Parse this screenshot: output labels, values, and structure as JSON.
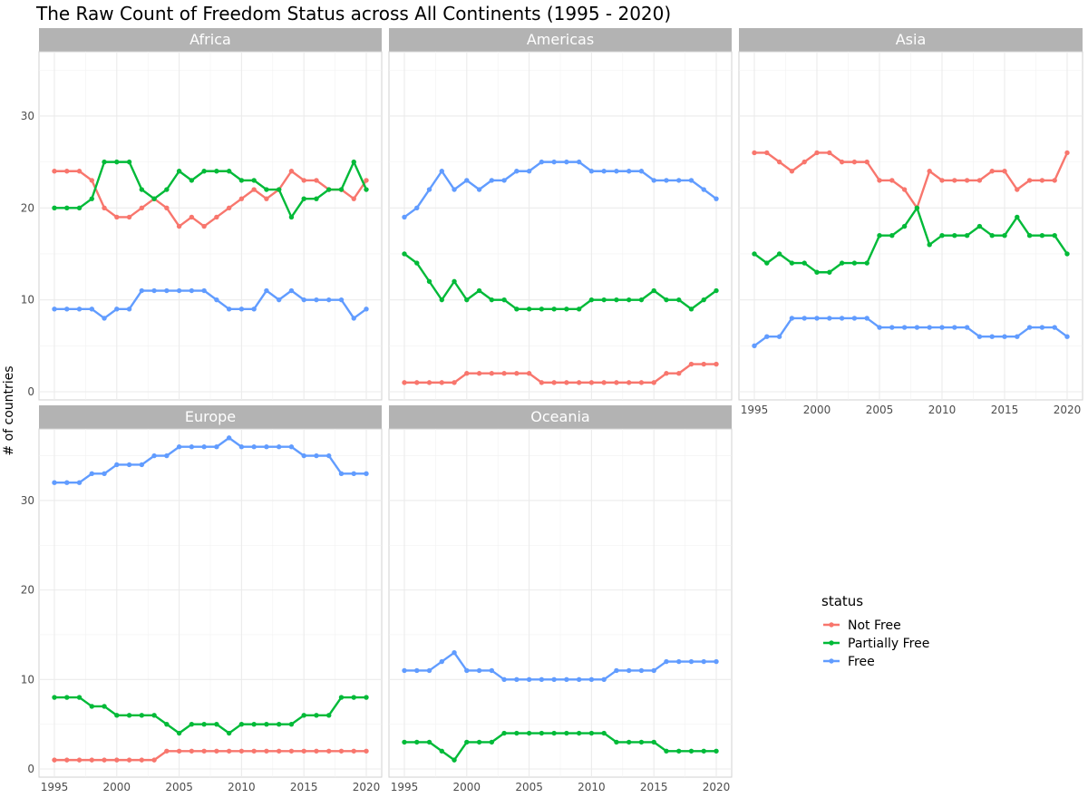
{
  "chart_data": {
    "type": "line",
    "title": "The Raw Count of Freedom Status across All Continents (1995 - 2020)",
    "xlabel": "",
    "ylabel": "# of countries",
    "x": [
      1995,
      1996,
      1997,
      1998,
      1999,
      2000,
      2001,
      2002,
      2003,
      2004,
      2005,
      2006,
      2007,
      2008,
      2009,
      2010,
      2011,
      2012,
      2013,
      2014,
      2015,
      2016,
      2017,
      2018,
      2019,
      2020
    ],
    "x_ticks": [
      1995,
      2000,
      2005,
      2010,
      2015,
      2020
    ],
    "xlim": [
      1995,
      2020
    ],
    "grid": true,
    "facet_scales": "free_y",
    "legend": {
      "title": "status",
      "position": "right",
      "entries": [
        {
          "name": "Not Free",
          "color": "#F8766D"
        },
        {
          "name": "Partially Free",
          "color": "#00BA38"
        },
        {
          "name": "Free",
          "color": "#619CFF"
        }
      ]
    },
    "facets": [
      {
        "name": "Africa",
        "ylim": [
          0,
          37
        ],
        "y_ticks": [
          0,
          10,
          20,
          30
        ],
        "series": [
          {
            "name": "Not Free",
            "values": [
              24,
              24,
              24,
              23,
              20,
              19,
              19,
              20,
              21,
              20,
              18,
              19,
              18,
              19,
              20,
              21,
              22,
              21,
              22,
              24,
              23,
              23,
              22,
              22,
              21,
              23
            ]
          },
          {
            "name": "Partially Free",
            "values": [
              20,
              20,
              20,
              21,
              25,
              25,
              25,
              22,
              21,
              22,
              24,
              23,
              24,
              24,
              24,
              23,
              23,
              22,
              22,
              19,
              21,
              21,
              22,
              22,
              25,
              22
            ]
          },
          {
            "name": "Free",
            "values": [
              9,
              9,
              9,
              9,
              8,
              9,
              9,
              11,
              11,
              11,
              11,
              11,
              11,
              10,
              9,
              9,
              9,
              11,
              10,
              11,
              10,
              10,
              10,
              10,
              8,
              9
            ]
          }
        ]
      },
      {
        "name": "Americas",
        "ylim": [
          0,
          37
        ],
        "y_ticks": [
          0,
          10,
          20,
          30
        ],
        "series": [
          {
            "name": "Not Free",
            "values": [
              1,
              1,
              1,
              1,
              1,
              2,
              2,
              2,
              2,
              2,
              2,
              1,
              1,
              1,
              1,
              1,
              1,
              1,
              1,
              1,
              1,
              2,
              2,
              3,
              3,
              3
            ]
          },
          {
            "name": "Partially Free",
            "values": [
              15,
              14,
              12,
              10,
              12,
              10,
              11,
              10,
              10,
              9,
              9,
              9,
              9,
              9,
              9,
              10,
              10,
              10,
              10,
              10,
              11,
              10,
              10,
              9,
              10,
              11
            ]
          },
          {
            "name": "Free",
            "values": [
              19,
              20,
              22,
              24,
              22,
              23,
              22,
              23,
              23,
              24,
              24,
              25,
              25,
              25,
              25,
              24,
              24,
              24,
              24,
              24,
              23,
              23,
              23,
              23,
              22,
              21
            ]
          }
        ]
      },
      {
        "name": "Asia",
        "ylim": [
          0,
          37
        ],
        "y_ticks": [
          0,
          10,
          20,
          30
        ],
        "series": [
          {
            "name": "Not Free",
            "values": [
              26,
              26,
              25,
              24,
              25,
              26,
              26,
              25,
              25,
              25,
              23,
              23,
              22,
              20,
              24,
              23,
              23,
              23,
              23,
              24,
              24,
              22,
              23,
              23,
              23,
              26
            ]
          },
          {
            "name": "Partially Free",
            "values": [
              15,
              14,
              15,
              14,
              14,
              13,
              13,
              14,
              14,
              14,
              17,
              17,
              18,
              20,
              16,
              17,
              17,
              17,
              18,
              17,
              17,
              19,
              17,
              17,
              17,
              15
            ]
          },
          {
            "name": "Free",
            "values": [
              5,
              6,
              6,
              8,
              8,
              8,
              8,
              8,
              8,
              8,
              7,
              7,
              7,
              7,
              7,
              7,
              7,
              7,
              6,
              6,
              6,
              6,
              7,
              7,
              7,
              6
            ]
          }
        ]
      },
      {
        "name": "Europe",
        "ylim": [
          0,
          38
        ],
        "y_ticks": [
          0,
          10,
          20,
          30
        ],
        "series": [
          {
            "name": "Not Free",
            "values": [
              1,
              1,
              1,
              1,
              1,
              1,
              1,
              1,
              1,
              2,
              2,
              2,
              2,
              2,
              2,
              2,
              2,
              2,
              2,
              2,
              2,
              2,
              2,
              2,
              2,
              2
            ]
          },
          {
            "name": "Partially Free",
            "values": [
              8,
              8,
              8,
              7,
              7,
              6,
              6,
              6,
              6,
              5,
              4,
              5,
              5,
              5,
              4,
              5,
              5,
              5,
              5,
              5,
              6,
              6,
              6,
              8,
              8,
              8
            ]
          },
          {
            "name": "Free",
            "values": [
              32,
              32,
              32,
              33,
              33,
              34,
              34,
              34,
              35,
              35,
              36,
              36,
              36,
              36,
              37,
              36,
              36,
              36,
              36,
              36,
              35,
              35,
              35,
              33,
              33,
              33
            ]
          }
        ]
      },
      {
        "name": "Oceania",
        "ylim": [
          0,
          38
        ],
        "y_ticks": [
          0,
          10,
          20,
          30
        ],
        "series": [
          {
            "name": "Partially Free",
            "values": [
              3,
              3,
              3,
              2,
              1,
              3,
              3,
              3,
              4,
              4,
              4,
              4,
              4,
              4,
              4,
              4,
              4,
              3,
              3,
              3,
              3,
              2,
              2,
              2,
              2,
              2
            ]
          },
          {
            "name": "Free",
            "values": [
              11,
              11,
              11,
              12,
              13,
              11,
              11,
              11,
              10,
              10,
              10,
              10,
              10,
              10,
              10,
              10,
              10,
              11,
              11,
              11,
              11,
              12,
              12,
              12,
              12,
              12
            ]
          }
        ]
      }
    ]
  }
}
